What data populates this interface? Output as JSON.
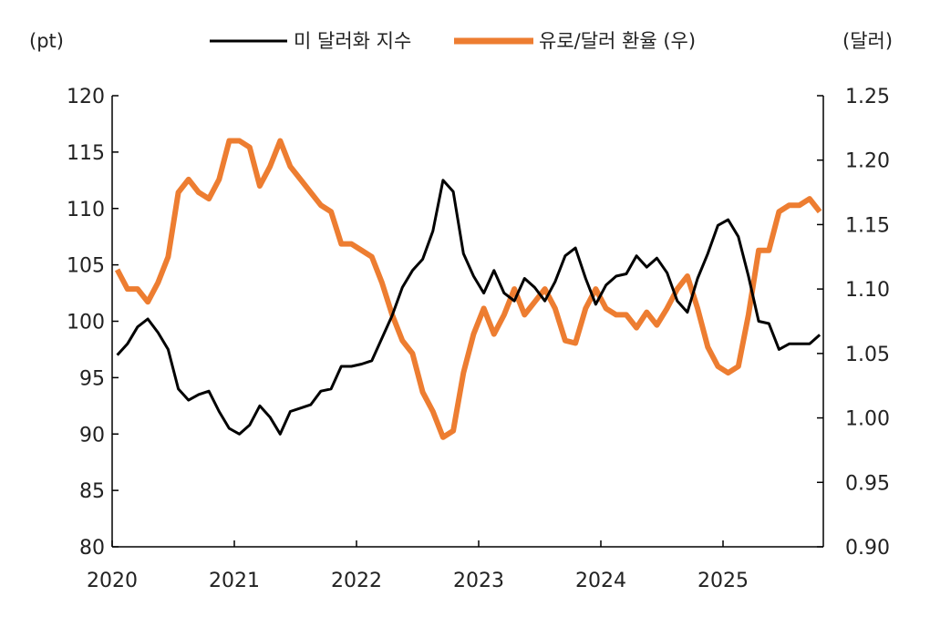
{
  "chart_data": {
    "type": "line",
    "left_axis_label": "(pt)",
    "right_axis_label": "(달러)",
    "ylim_left": [
      80,
      120
    ],
    "ylim_right": [
      0.9,
      1.25
    ],
    "yticks_left": [
      "120",
      "115",
      "110",
      "105",
      "100",
      "95",
      "90",
      "85",
      "80"
    ],
    "yticks_right": [
      "1.25",
      "1.20",
      "1.15",
      "1.10",
      "1.05",
      "1.00",
      "0.95",
      "0.90"
    ],
    "xticks": [
      "2020",
      "2021",
      "2022",
      "2023",
      "2024",
      "2025"
    ],
    "grid": false,
    "legend_position": "top",
    "x": [
      "2020-01",
      "2020-02",
      "2020-03",
      "2020-04",
      "2020-05",
      "2020-06",
      "2020-07",
      "2020-08",
      "2020-09",
      "2020-10",
      "2020-11",
      "2020-12",
      "2021-01",
      "2021-02",
      "2021-03",
      "2021-04",
      "2021-05",
      "2021-06",
      "2021-07",
      "2021-08",
      "2021-09",
      "2021-10",
      "2021-11",
      "2021-12",
      "2022-01",
      "2022-02",
      "2022-03",
      "2022-04",
      "2022-05",
      "2022-06",
      "2022-07",
      "2022-08",
      "2022-09",
      "2022-10",
      "2022-11",
      "2022-12",
      "2023-01",
      "2023-02",
      "2023-03",
      "2023-04",
      "2023-05",
      "2023-06",
      "2023-07",
      "2023-08",
      "2023-09",
      "2023-10",
      "2023-11",
      "2023-12",
      "2024-01",
      "2024-02",
      "2024-03",
      "2024-04",
      "2024-05",
      "2024-06",
      "2024-07",
      "2024-08",
      "2024-09",
      "2024-10",
      "2024-11",
      "2024-12",
      "2025-01",
      "2025-02",
      "2025-03",
      "2025-04",
      "2025-05",
      "2025-06",
      "2025-07",
      "2025-08",
      "2025-09",
      "2025-10"
    ],
    "series": [
      {
        "name": "미 달러화 지수",
        "axis": "left",
        "color": "#000000",
        "values": [
          97.0,
          98.0,
          99.5,
          100.2,
          99.0,
          97.5,
          94.0,
          93.0,
          93.5,
          93.8,
          92.0,
          90.5,
          90.0,
          90.8,
          92.5,
          91.5,
          90.0,
          92.0,
          92.3,
          92.6,
          93.8,
          94.0,
          96.0,
          96.0,
          96.2,
          96.5,
          98.5,
          100.5,
          103.0,
          104.5,
          105.5,
          108.0,
          112.5,
          111.5,
          106.0,
          104.0,
          102.5,
          104.5,
          102.5,
          101.8,
          103.8,
          103.0,
          101.8,
          103.5,
          105.8,
          106.5,
          103.8,
          101.5,
          103.2,
          104.0,
          104.2,
          105.8,
          104.8,
          105.6,
          104.3,
          101.8,
          100.8,
          103.8,
          106.0,
          108.5,
          109.0,
          107.5,
          104.0,
          100.0,
          99.8,
          97.5,
          98.0,
          98.0,
          98.0,
          98.8
        ]
      },
      {
        "name": "유로/달러 환율 (우)",
        "axis": "right",
        "color": "#ED7D31",
        "values": [
          1.115,
          1.1,
          1.1,
          1.09,
          1.105,
          1.125,
          1.175,
          1.185,
          1.175,
          1.17,
          1.185,
          1.215,
          1.215,
          1.21,
          1.18,
          1.195,
          1.215,
          1.195,
          1.185,
          1.175,
          1.165,
          1.16,
          1.135,
          1.135,
          1.13,
          1.125,
          1.105,
          1.08,
          1.06,
          1.05,
          1.02,
          1.005,
          0.985,
          0.99,
          1.035,
          1.065,
          1.085,
          1.065,
          1.08,
          1.1,
          1.08,
          1.09,
          1.1,
          1.085,
          1.06,
          1.058,
          1.085,
          1.1,
          1.085,
          1.08,
          1.08,
          1.07,
          1.082,
          1.072,
          1.085,
          1.1,
          1.11,
          1.085,
          1.055,
          1.04,
          1.035,
          1.04,
          1.08,
          1.13,
          1.13,
          1.16,
          1.165,
          1.165,
          1.17,
          1.16
        ]
      }
    ]
  }
}
